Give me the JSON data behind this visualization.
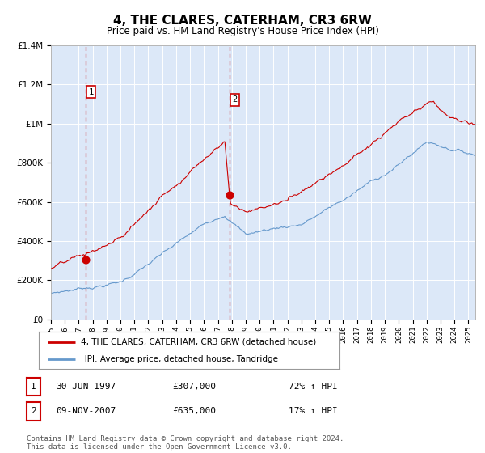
{
  "title": "4, THE CLARES, CATERHAM, CR3 6RW",
  "subtitle": "Price paid vs. HM Land Registry's House Price Index (HPI)",
  "background_color": "#ffffff",
  "plot_bg_color": "#dce8f8",
  "legend_line1": "4, THE CLARES, CATERHAM, CR3 6RW (detached house)",
  "legend_line2": "HPI: Average price, detached house, Tandridge",
  "sale1_date": "30-JUN-1997",
  "sale1_price": "£307,000",
  "sale1_pct": "72% ↑ HPI",
  "sale2_date": "09-NOV-2007",
  "sale2_price": "£635,000",
  "sale2_pct": "17% ↑ HPI",
  "footer": "Contains HM Land Registry data © Crown copyright and database right 2024.\nThis data is licensed under the Open Government Licence v3.0.",
  "red_line_color": "#cc0000",
  "blue_line_color": "#6699cc",
  "dashed_line_color": "#cc0000",
  "sale1_year": 1997.5,
  "sale2_year": 2007.85,
  "sale1_price_val": 307000,
  "sale2_price_val": 635000,
  "ylim_max": 1400000,
  "yticks": [
    0,
    200000,
    400000,
    600000,
    800000,
    1000000,
    1200000,
    1400000
  ]
}
